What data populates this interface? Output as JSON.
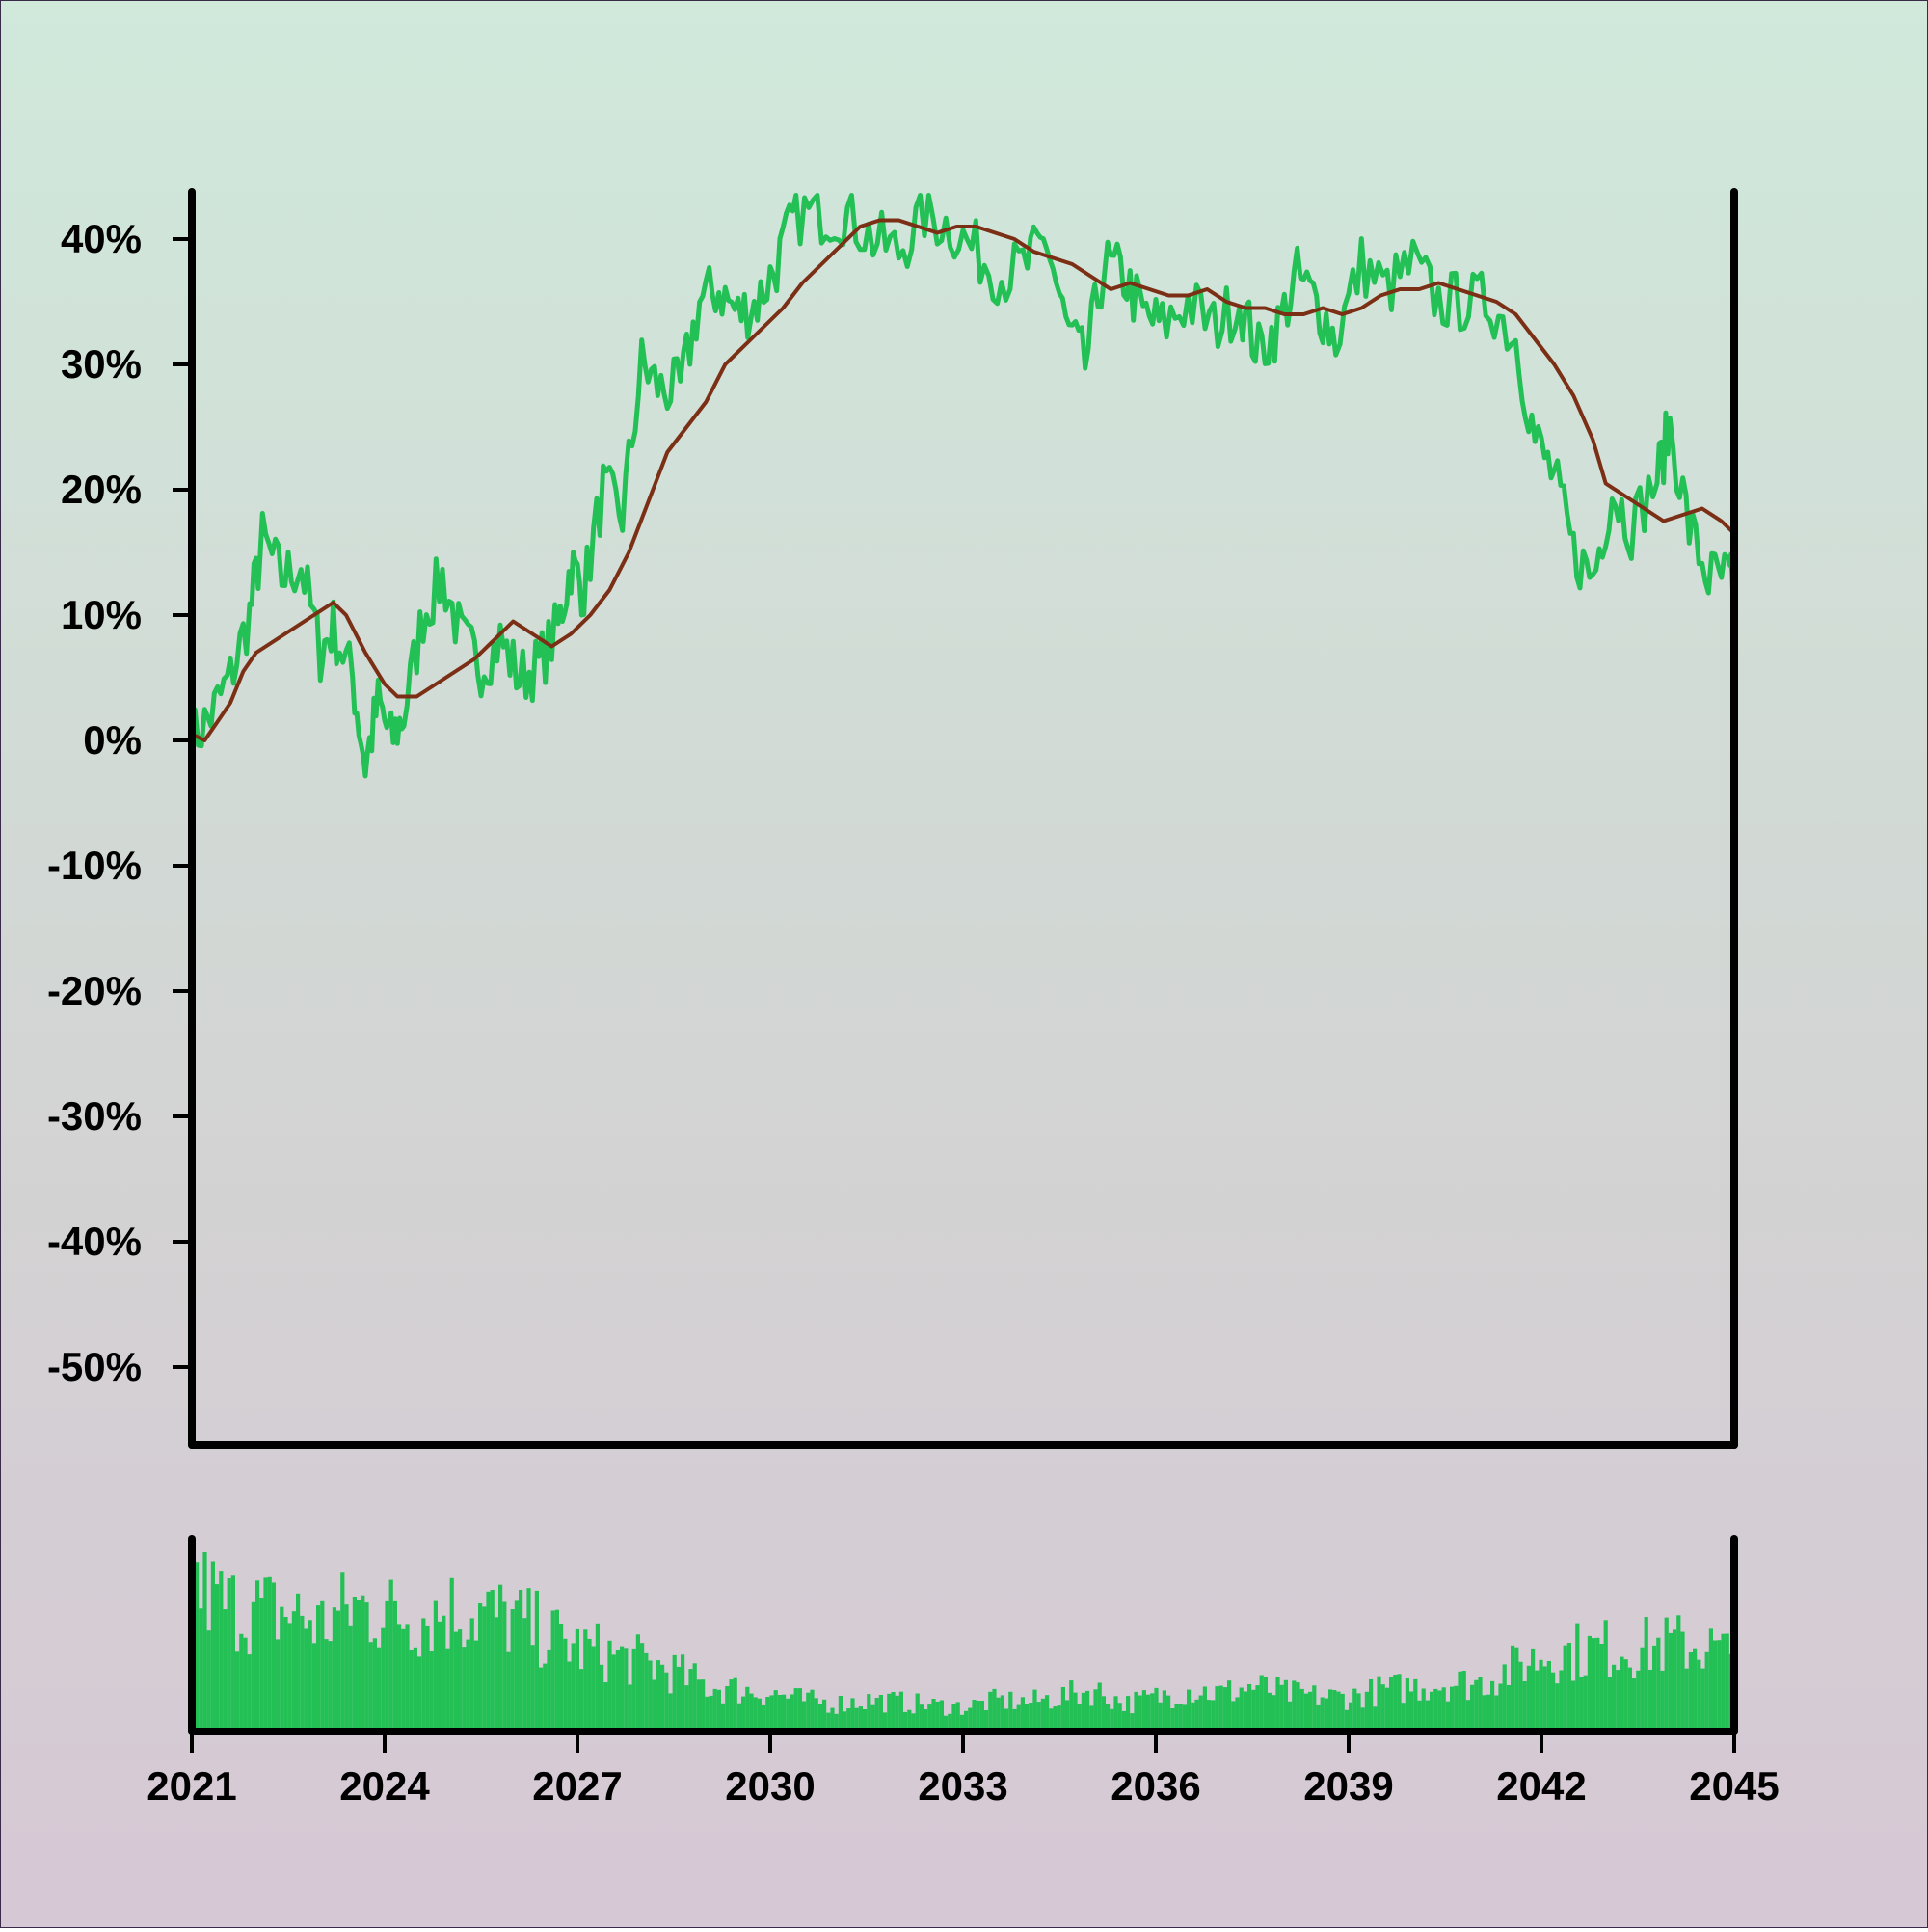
{
  "chart_data": {
    "type": "line",
    "x_ticks": [
      "2021",
      "2024",
      "2027",
      "2030",
      "2033",
      "2036",
      "2039",
      "2042",
      "2045"
    ],
    "y_ticks": [
      "40%",
      "30%",
      "20%",
      "10%",
      "0%",
      "-10%",
      "-20%",
      "-30%",
      "-40%",
      "-50%"
    ],
    "xlim": [
      2021,
      2045
    ],
    "ylim": [
      -55,
      44
    ],
    "grid": false,
    "legend": "none",
    "series": [
      {
        "kind": "raw",
        "color": "#22c055",
        "points": [
          [
            2021.0,
            0
          ],
          [
            2021.3,
            2
          ],
          [
            2021.6,
            5
          ],
          [
            2021.9,
            10
          ],
          [
            2022.1,
            16
          ],
          [
            2022.4,
            13
          ],
          [
            2022.7,
            14
          ],
          [
            2023.0,
            7
          ],
          [
            2023.2,
            9
          ],
          [
            2023.5,
            5
          ],
          [
            2023.7,
            -2
          ],
          [
            2023.9,
            3
          ],
          [
            2024.1,
            0
          ],
          [
            2024.3,
            2
          ],
          [
            2024.6,
            10
          ],
          [
            2024.9,
            13
          ],
          [
            2025.2,
            8
          ],
          [
            2025.5,
            6
          ],
          [
            2025.8,
            8
          ],
          [
            2026.1,
            5
          ],
          [
            2026.4,
            6
          ],
          [
            2026.7,
            9
          ],
          [
            2026.9,
            14
          ],
          [
            2027.1,
            12
          ],
          [
            2027.4,
            20
          ],
          [
            2027.7,
            18
          ],
          [
            2028.0,
            30
          ],
          [
            2028.3,
            28
          ],
          [
            2028.6,
            28
          ],
          [
            2028.9,
            35
          ],
          [
            2029.2,
            36
          ],
          [
            2029.5,
            34
          ],
          [
            2029.8,
            35
          ],
          [
            2030.1,
            38
          ],
          [
            2030.4,
            42
          ],
          [
            2030.8,
            42
          ],
          [
            2031.2,
            42
          ],
          [
            2031.6,
            40
          ],
          [
            2032.0,
            39
          ],
          [
            2032.4,
            42
          ],
          [
            2032.8,
            41
          ],
          [
            2033.2,
            39
          ],
          [
            2033.6,
            37
          ],
          [
            2034.0,
            38
          ],
          [
            2034.3,
            40
          ],
          [
            2034.6,
            33
          ],
          [
            2034.9,
            30
          ],
          [
            2035.2,
            38
          ],
          [
            2035.5,
            37
          ],
          [
            2035.8,
            34
          ],
          [
            2036.1,
            33
          ],
          [
            2036.5,
            35
          ],
          [
            2036.9,
            33
          ],
          [
            2037.3,
            35
          ],
          [
            2037.6,
            31
          ],
          [
            2037.9,
            33
          ],
          [
            2038.2,
            37
          ],
          [
            2038.5,
            35
          ],
          [
            2038.8,
            32
          ],
          [
            2039.2,
            38
          ],
          [
            2039.6,
            36
          ],
          [
            2040.0,
            38
          ],
          [
            2040.4,
            35
          ],
          [
            2040.8,
            35
          ],
          [
            2041.2,
            35
          ],
          [
            2041.6,
            32
          ],
          [
            2041.9,
            24
          ],
          [
            2042.2,
            21
          ],
          [
            2042.5,
            15
          ],
          [
            2042.8,
            13
          ],
          [
            2043.1,
            20
          ],
          [
            2043.4,
            17
          ],
          [
            2043.8,
            21
          ],
          [
            2044.0,
            25
          ],
          [
            2044.3,
            17
          ],
          [
            2044.6,
            13
          ],
          [
            2044.9,
            13
          ],
          [
            2045.0,
            12
          ]
        ]
      },
      {
        "kind": "smoothed",
        "color": "#7b3016",
        "points": [
          [
            2021.0,
            0.5
          ],
          [
            2021.2,
            0
          ],
          [
            2021.4,
            1.5
          ],
          [
            2021.6,
            3
          ],
          [
            2021.8,
            5.5
          ],
          [
            2022.0,
            7
          ],
          [
            2022.3,
            8
          ],
          [
            2022.6,
            9
          ],
          [
            2022.9,
            10
          ],
          [
            2023.2,
            11
          ],
          [
            2023.4,
            10
          ],
          [
            2023.7,
            7
          ],
          [
            2024.0,
            4.5
          ],
          [
            2024.2,
            3.5
          ],
          [
            2024.5,
            3.5
          ],
          [
            2024.8,
            4.5
          ],
          [
            2025.1,
            5.5
          ],
          [
            2025.4,
            6.5
          ],
          [
            2025.7,
            8
          ],
          [
            2026.0,
            9.5
          ],
          [
            2026.3,
            8.5
          ],
          [
            2026.6,
            7.5
          ],
          [
            2026.9,
            8.5
          ],
          [
            2027.2,
            10
          ],
          [
            2027.5,
            12
          ],
          [
            2027.8,
            15
          ],
          [
            2028.1,
            19
          ],
          [
            2028.4,
            23
          ],
          [
            2028.7,
            25
          ],
          [
            2029.0,
            27
          ],
          [
            2029.3,
            30
          ],
          [
            2029.6,
            31.5
          ],
          [
            2029.9,
            33
          ],
          [
            2030.2,
            34.5
          ],
          [
            2030.5,
            36.5
          ],
          [
            2030.8,
            38
          ],
          [
            2031.1,
            39.5
          ],
          [
            2031.4,
            41
          ],
          [
            2031.7,
            41.5
          ],
          [
            2032.0,
            41.5
          ],
          [
            2032.3,
            41
          ],
          [
            2032.6,
            40.5
          ],
          [
            2032.9,
            41
          ],
          [
            2033.2,
            41
          ],
          [
            2033.5,
            40.5
          ],
          [
            2033.8,
            40
          ],
          [
            2034.1,
            39
          ],
          [
            2034.4,
            38.5
          ],
          [
            2034.7,
            38
          ],
          [
            2035.0,
            37
          ],
          [
            2035.3,
            36
          ],
          [
            2035.6,
            36.5
          ],
          [
            2035.9,
            36
          ],
          [
            2036.2,
            35.5
          ],
          [
            2036.5,
            35.5
          ],
          [
            2036.8,
            36
          ],
          [
            2037.1,
            35
          ],
          [
            2037.4,
            34.5
          ],
          [
            2037.7,
            34.5
          ],
          [
            2038.0,
            34
          ],
          [
            2038.3,
            34
          ],
          [
            2038.6,
            34.5
          ],
          [
            2038.9,
            34
          ],
          [
            2039.2,
            34.5
          ],
          [
            2039.5,
            35.5
          ],
          [
            2039.8,
            36
          ],
          [
            2040.1,
            36
          ],
          [
            2040.4,
            36.5
          ],
          [
            2040.7,
            36
          ],
          [
            2041.0,
            35.5
          ],
          [
            2041.3,
            35
          ],
          [
            2041.6,
            34
          ],
          [
            2041.9,
            32
          ],
          [
            2042.2,
            30
          ],
          [
            2042.5,
            27.5
          ],
          [
            2042.8,
            24
          ],
          [
            2043.0,
            20.5
          ],
          [
            2043.3,
            19.5
          ],
          [
            2043.6,
            18.5
          ],
          [
            2043.9,
            17.5
          ],
          [
            2044.2,
            18
          ],
          [
            2044.5,
            18.5
          ],
          [
            2044.8,
            17.5
          ],
          [
            2045.0,
            16.5
          ]
        ]
      }
    ],
    "volume_envelope": [
      [
        2021.0,
        0.85
      ],
      [
        2021.5,
        0.72
      ],
      [
        2022.0,
        0.7
      ],
      [
        2022.5,
        0.68
      ],
      [
        2023.0,
        0.62
      ],
      [
        2023.5,
        0.72
      ],
      [
        2024.0,
        0.68
      ],
      [
        2024.5,
        0.66
      ],
      [
        2025.0,
        0.7
      ],
      [
        2025.5,
        0.68
      ],
      [
        2026.0,
        0.64
      ],
      [
        2026.5,
        0.56
      ],
      [
        2027.0,
        0.48
      ],
      [
        2027.5,
        0.44
      ],
      [
        2028.0,
        0.4
      ],
      [
        2028.5,
        0.34
      ],
      [
        2029.0,
        0.26
      ],
      [
        2029.5,
        0.24
      ],
      [
        2030.0,
        0.22
      ],
      [
        2030.5,
        0.18
      ],
      [
        2031.0,
        0.16
      ],
      [
        2031.5,
        0.18
      ],
      [
        2032.0,
        0.17
      ],
      [
        2032.5,
        0.15
      ],
      [
        2033.0,
        0.14
      ],
      [
        2033.5,
        0.18
      ],
      [
        2034.0,
        0.17
      ],
      [
        2034.5,
        0.2
      ],
      [
        2035.0,
        0.24
      ],
      [
        2035.5,
        0.16
      ],
      [
        2036.0,
        0.2
      ],
      [
        2036.5,
        0.24
      ],
      [
        2037.0,
        0.22
      ],
      [
        2037.5,
        0.26
      ],
      [
        2038.0,
        0.22
      ],
      [
        2038.5,
        0.2
      ],
      [
        2039.0,
        0.2
      ],
      [
        2039.5,
        0.24
      ],
      [
        2040.0,
        0.26
      ],
      [
        2040.5,
        0.28
      ],
      [
        2041.0,
        0.28
      ],
      [
        2041.5,
        0.36
      ],
      [
        2042.0,
        0.44
      ],
      [
        2042.5,
        0.46
      ],
      [
        2043.0,
        0.48
      ],
      [
        2043.5,
        0.48
      ],
      [
        2044.0,
        0.5
      ],
      [
        2044.5,
        0.5
      ],
      [
        2045.0,
        0.42
      ]
    ]
  },
  "colors": {
    "raw_line": "#22c055",
    "smoothed_line": "#7b3016",
    "volume_bars": "#22c055",
    "axis": "#000000"
  }
}
